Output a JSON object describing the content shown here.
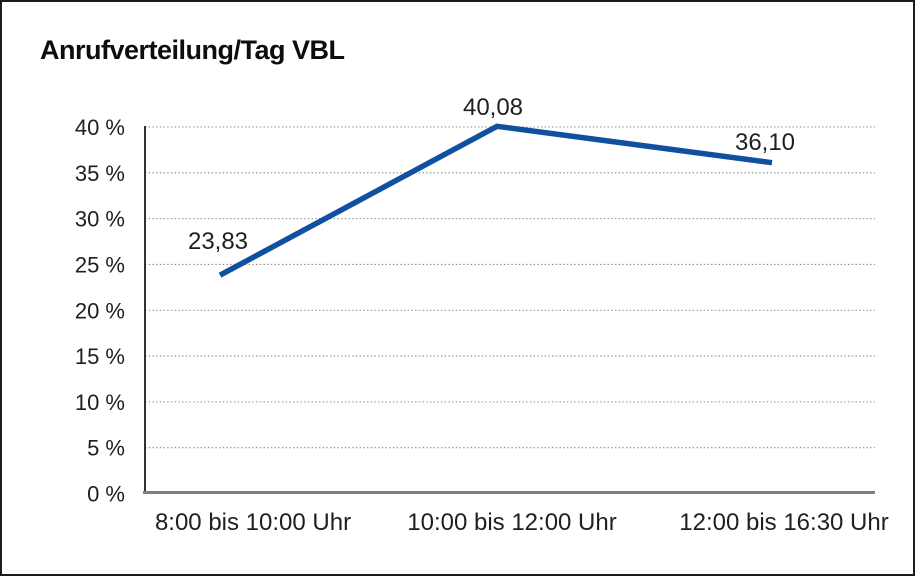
{
  "title": "Anrufverteilung/Tag VBL",
  "colors": {
    "line": "#10509f",
    "gridline": "#8f8f8f",
    "y_axis": "#333333",
    "x_baseline": "#7f7f7f",
    "text": "#1f1f1f",
    "frame_border": "#1c1c1c",
    "background": "#ffffff"
  },
  "chart_data": {
    "type": "line",
    "title": "Anrufverteilung/Tag VBL",
    "categories": [
      "8:00 bis 10:00 Uhr",
      "10:00 bis 12:00 Uhr",
      "12:00 bis 16:30 Uhr"
    ],
    "series": [
      {
        "name": "Anrufverteilung/Tag VBL",
        "values": [
          23.83,
          40.08,
          36.1
        ],
        "value_labels": [
          "23,83",
          "40,08",
          "36,10"
        ]
      }
    ],
    "xlabel": "",
    "ylabel": "",
    "ylim": [
      0,
      40
    ],
    "y_tick_values": [
      0,
      5,
      10,
      15,
      20,
      25,
      30,
      35,
      40
    ],
    "y_tick_labels": [
      "0 %",
      "5 %",
      "10 %",
      "15 %",
      "20 %",
      "25 %",
      "30 %",
      "35 %",
      "40 %"
    ],
    "grid": "horizontal-dotted",
    "legend": "none",
    "data_labels_shown": true
  }
}
